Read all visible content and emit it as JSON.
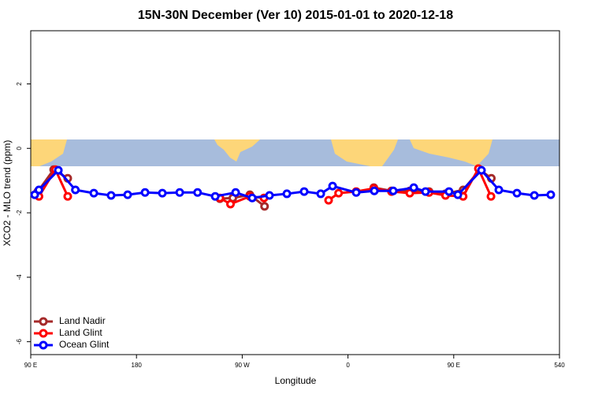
{
  "chart_data": {
    "type": "line",
    "title": "15N-30N December (Ver 10)   2015-01-01 to 2020-12-18",
    "xlabel": "Longitude",
    "ylabel": "XCO2 - MLO trend (ppm)",
    "xlim": [
      90,
      540
    ],
    "ylim": [
      -6.4,
      3.65
    ],
    "xticks": [
      {
        "value": 90,
        "label": "90 E"
      },
      180,
      {
        "value": 270,
        "label": "90 W"
      },
      {
        "value": 360,
        "label": "0"
      },
      {
        "value": 450,
        "label": "90 E"
      },
      540
    ],
    "yticks": [
      -6,
      -4,
      -2,
      0,
      2
    ],
    "legend": "bottomleft",
    "series": [
      {
        "name": "Land Nadir",
        "color": "#a52a2a",
        "x": [
          96,
          109.5,
          121.5,
          null,
          251,
          262,
          276.5,
          289,
          null,
          382,
          397,
          412.6,
          429,
          443,
          458,
          472.3,
          482
        ],
        "values": [
          -1.34,
          -0.66,
          -0.93,
          null,
          -1.56,
          -1.54,
          -1.44,
          -1.8,
          null,
          -1.22,
          -1.32,
          -1.32,
          -1.34,
          -1.41,
          -1.29,
          -0.66,
          -0.93
        ]
      },
      {
        "name": "Land Glint",
        "color": "#ff0000",
        "x": [
          97,
          111,
          121.5,
          null,
          251,
          260,
          276.5,
          288.5,
          null,
          343.5,
          352,
          367,
          382,
          397,
          412.6,
          429,
          443,
          458,
          471,
          481.7
        ],
        "values": [
          -1.49,
          -0.66,
          -1.49,
          null,
          -1.54,
          -1.73,
          -1.49,
          -1.54,
          null,
          -1.61,
          -1.39,
          -1.34,
          -1.24,
          -1.34,
          -1.39,
          -1.37,
          -1.46,
          -1.49,
          -0.63,
          -1.49
        ]
      },
      {
        "name": "Ocean Glint",
        "color": "#0000ff",
        "x": [
          93.4,
          97,
          113.5,
          128,
          143.7,
          158.4,
          172.5,
          187.3,
          202,
          216.8,
          232,
          247,
          264.4,
          278.5,
          293.2,
          308,
          322.7,
          336.8,
          346.9,
          367,
          382.4,
          398.5,
          416,
          426,
          446,
          453.5,
          473.6,
          488.4,
          503.8,
          518.6,
          532.6
        ],
        "values": [
          -1.44,
          -1.29,
          -0.68,
          -1.29,
          -1.39,
          -1.46,
          -1.44,
          -1.37,
          -1.39,
          -1.37,
          -1.37,
          -1.49,
          -1.37,
          -1.54,
          -1.46,
          -1.41,
          -1.34,
          -1.41,
          -1.17,
          -1.37,
          -1.32,
          -1.32,
          -1.22,
          -1.34,
          -1.34,
          -1.44,
          -0.68,
          -1.29,
          -1.39,
          -1.46,
          -1.44
        ]
      }
    ]
  }
}
